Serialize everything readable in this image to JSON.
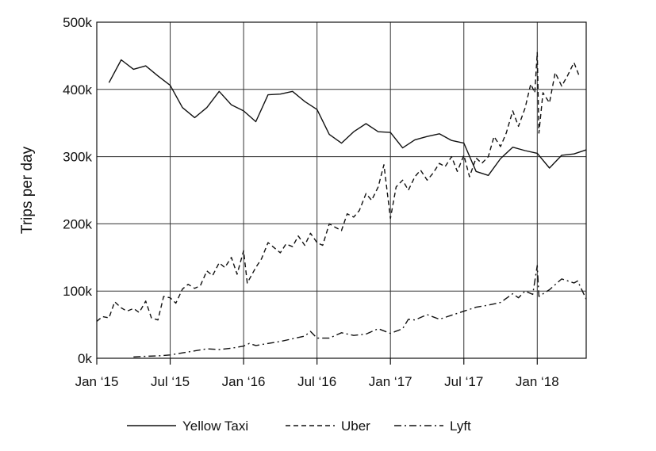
{
  "chart_data": {
    "type": "line",
    "title": "",
    "xlabel": "",
    "ylabel": "Trips per day",
    "ylim": [
      0,
      500000
    ],
    "xlim": [
      "2015-01",
      "2018-05"
    ],
    "grid": true,
    "legend_position": "bottom",
    "y_ticks": [
      {
        "value": 0,
        "label": "0k"
      },
      {
        "value": 100000,
        "label": "100k"
      },
      {
        "value": 200000,
        "label": "200k"
      },
      {
        "value": 300000,
        "label": "300k"
      },
      {
        "value": 400000,
        "label": "400k"
      },
      {
        "value": 500000,
        "label": "500k"
      }
    ],
    "x_ticks": [
      {
        "value": "2015-01",
        "label": "Jan ‘15"
      },
      {
        "value": "2015-07",
        "label": "Jul ‘15"
      },
      {
        "value": "2016-01",
        "label": "Jan ‘16"
      },
      {
        "value": "2016-07",
        "label": "Jul ‘16"
      },
      {
        "value": "2017-01",
        "label": "Jan ‘17"
      },
      {
        "value": "2017-07",
        "label": "Jul ‘17"
      },
      {
        "value": "2018-01",
        "label": "Jan ‘18"
      }
    ],
    "series": [
      {
        "name": "Yellow Taxi",
        "line_style": "solid",
        "color": "#111111",
        "points": [
          [
            "2015-02",
            410000
          ],
          [
            "2015-03",
            444000
          ],
          [
            "2015-04",
            430000
          ],
          [
            "2015-05",
            435000
          ],
          [
            "2015-06",
            420000
          ],
          [
            "2015-07",
            406000
          ],
          [
            "2015-08",
            373000
          ],
          [
            "2015-09",
            358000
          ],
          [
            "2015-10",
            373000
          ],
          [
            "2015-11",
            397000
          ],
          [
            "2015-12",
            377000
          ],
          [
            "2016-01",
            368000
          ],
          [
            "2016-02",
            352000
          ],
          [
            "2016-03",
            392000
          ],
          [
            "2016-04",
            393000
          ],
          [
            "2016-05",
            397000
          ],
          [
            "2016-06",
            382000
          ],
          [
            "2016-07",
            370000
          ],
          [
            "2016-08",
            333000
          ],
          [
            "2016-09",
            320000
          ],
          [
            "2016-10",
            337000
          ],
          [
            "2016-11",
            349000
          ],
          [
            "2016-12",
            337000
          ],
          [
            "2017-01",
            336000
          ],
          [
            "2017-02",
            313000
          ],
          [
            "2017-03",
            325000
          ],
          [
            "2017-04",
            330000
          ],
          [
            "2017-05",
            334000
          ],
          [
            "2017-06",
            324000
          ],
          [
            "2017-07",
            320000
          ],
          [
            "2017-08",
            278000
          ],
          [
            "2017-09",
            272000
          ],
          [
            "2017-10",
            297000
          ],
          [
            "2017-11",
            314000
          ],
          [
            "2017-12",
            309000
          ],
          [
            "2018-01",
            305000
          ],
          [
            "2018-02",
            283000
          ],
          [
            "2018-03",
            302000
          ],
          [
            "2018-04",
            304000
          ],
          [
            "2018-05",
            310000
          ]
        ]
      },
      {
        "name": "Uber",
        "line_style": "dashed",
        "color": "#111111",
        "points": [
          [
            "2015-01",
            55000
          ],
          [
            "2015-01-15",
            62000
          ],
          [
            "2015-02",
            60000
          ],
          [
            "2015-02-15",
            84000
          ],
          [
            "2015-03",
            75000
          ],
          [
            "2015-03-15",
            70000
          ],
          [
            "2015-04",
            74000
          ],
          [
            "2015-04-15",
            68000
          ],
          [
            "2015-05",
            85000
          ],
          [
            "2015-05-15",
            60000
          ],
          [
            "2015-06",
            57000
          ],
          [
            "2015-06-15",
            92000
          ],
          [
            "2015-07",
            90000
          ],
          [
            "2015-07-15",
            82000
          ],
          [
            "2015-08",
            103000
          ],
          [
            "2015-08-15",
            110000
          ],
          [
            "2015-09",
            104000
          ],
          [
            "2015-09-15",
            108000
          ],
          [
            "2015-10",
            130000
          ],
          [
            "2015-10-15",
            123000
          ],
          [
            "2015-11",
            142000
          ],
          [
            "2015-11-15",
            135000
          ],
          [
            "2015-12",
            150000
          ],
          [
            "2015-12-15",
            125000
          ],
          [
            "2016-01",
            160000
          ],
          [
            "2016-01-10",
            112000
          ],
          [
            "2016-02",
            135000
          ],
          [
            "2016-02-15",
            148000
          ],
          [
            "2016-03",
            172000
          ],
          [
            "2016-03-15",
            165000
          ],
          [
            "2016-04",
            157000
          ],
          [
            "2016-04-15",
            170000
          ],
          [
            "2016-05",
            166000
          ],
          [
            "2016-05-15",
            182000
          ],
          [
            "2016-06",
            168000
          ],
          [
            "2016-06-15",
            186000
          ],
          [
            "2016-07",
            172000
          ],
          [
            "2016-07-15",
            168000
          ],
          [
            "2016-08",
            200000
          ],
          [
            "2016-08-15",
            195000
          ],
          [
            "2016-09",
            190000
          ],
          [
            "2016-09-15",
            215000
          ],
          [
            "2016-10",
            210000
          ],
          [
            "2016-10-15",
            220000
          ],
          [
            "2016-11",
            245000
          ],
          [
            "2016-11-15",
            235000
          ],
          [
            "2016-12",
            255000
          ],
          [
            "2016-12-15",
            288000
          ],
          [
            "2017-01",
            208000
          ],
          [
            "2017-01-15",
            255000
          ],
          [
            "2017-02",
            265000
          ],
          [
            "2017-02-15",
            250000
          ],
          [
            "2017-03",
            270000
          ],
          [
            "2017-03-15",
            280000
          ],
          [
            "2017-04",
            265000
          ],
          [
            "2017-04-15",
            275000
          ],
          [
            "2017-05",
            290000
          ],
          [
            "2017-05-15",
            285000
          ],
          [
            "2017-06",
            300000
          ],
          [
            "2017-06-15",
            278000
          ],
          [
            "2017-07",
            302000
          ],
          [
            "2017-07-15",
            270000
          ],
          [
            "2017-08",
            298000
          ],
          [
            "2017-08-15",
            290000
          ],
          [
            "2017-09",
            300000
          ],
          [
            "2017-09-15",
            330000
          ],
          [
            "2017-10",
            315000
          ],
          [
            "2017-10-15",
            335000
          ],
          [
            "2017-11",
            368000
          ],
          [
            "2017-11-15",
            345000
          ],
          [
            "2017-12",
            372000
          ],
          [
            "2017-12-15",
            408000
          ],
          [
            "2017-12-25",
            395000
          ],
          [
            "2018-01",
            455000
          ],
          [
            "2018-01-05",
            335000
          ],
          [
            "2018-01-15",
            395000
          ],
          [
            "2018-02",
            380000
          ],
          [
            "2018-02-15",
            425000
          ],
          [
            "2018-03",
            405000
          ],
          [
            "2018-03-15",
            420000
          ],
          [
            "2018-04",
            440000
          ],
          [
            "2018-04-15",
            418000
          ]
        ]
      },
      {
        "name": "Lyft",
        "line_style": "dashdot",
        "color": "#111111",
        "points": [
          [
            "2015-04",
            2000
          ],
          [
            "2015-05",
            3000
          ],
          [
            "2015-06",
            3500
          ],
          [
            "2015-07",
            5000
          ],
          [
            "2015-08",
            8000
          ],
          [
            "2015-09",
            11000
          ],
          [
            "2015-10",
            14000
          ],
          [
            "2015-11",
            13000
          ],
          [
            "2015-12",
            15000
          ],
          [
            "2016-01",
            18000
          ],
          [
            "2016-01-15",
            22000
          ],
          [
            "2016-02",
            19000
          ],
          [
            "2016-03",
            22000
          ],
          [
            "2016-04",
            25000
          ],
          [
            "2016-05",
            29000
          ],
          [
            "2016-06",
            33000
          ],
          [
            "2016-06-15",
            40000
          ],
          [
            "2016-07",
            30000
          ],
          [
            "2016-08",
            30000
          ],
          [
            "2016-09",
            38000
          ],
          [
            "2016-10",
            34000
          ],
          [
            "2016-11",
            36000
          ],
          [
            "2016-12",
            44000
          ],
          [
            "2017-01",
            37000
          ],
          [
            "2017-02",
            44000
          ],
          [
            "2017-02-15",
            58000
          ],
          [
            "2017-03",
            57000
          ],
          [
            "2017-04",
            65000
          ],
          [
            "2017-05",
            58000
          ],
          [
            "2017-06",
            64000
          ],
          [
            "2017-07",
            70000
          ],
          [
            "2017-08",
            76000
          ],
          [
            "2017-09",
            79000
          ],
          [
            "2017-10",
            83000
          ],
          [
            "2017-11",
            96000
          ],
          [
            "2017-11-15",
            90000
          ],
          [
            "2017-12",
            100000
          ],
          [
            "2017-12-20",
            95000
          ],
          [
            "2018-01",
            138000
          ],
          [
            "2018-01-05",
            92000
          ],
          [
            "2018-02",
            102000
          ],
          [
            "2018-03",
            118000
          ],
          [
            "2018-04",
            112000
          ],
          [
            "2018-04-10",
            115000
          ],
          [
            "2018-05",
            88000
          ]
        ]
      }
    ]
  }
}
